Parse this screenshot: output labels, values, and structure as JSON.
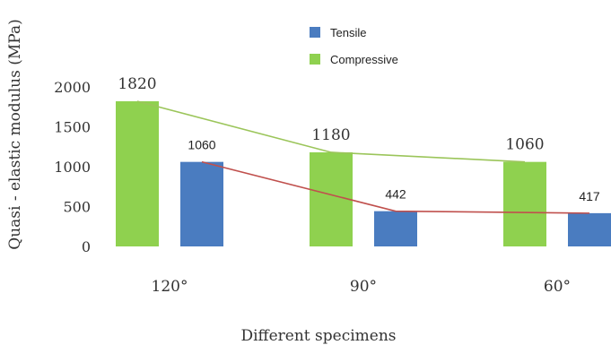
{
  "chart_data": {
    "type": "bar",
    "categories": [
      "120°",
      "90°",
      "60°"
    ],
    "series": [
      {
        "name": "Tensile",
        "values": [
          1060,
          442,
          417
        ],
        "color": "#4a7cc0",
        "trend_color": "#c0504d"
      },
      {
        "name": "Compressive",
        "values": [
          1820,
          1180,
          1060
        ],
        "color": "#8fd14f",
        "trend_color": "#9bc55a"
      }
    ],
    "data_labels": {
      "Compressive": [
        "1820",
        "1180",
        "1060"
      ],
      "Tensile": [
        "1060",
        "442",
        "417"
      ]
    },
    "trend_lines": true,
    "xlabel": "Different specimens",
    "ylabel": "Quasi - elastic modulus (MPa)",
    "ylim": [
      0,
      2000
    ],
    "yticks": [
      0,
      500,
      1000,
      1500,
      2000
    ],
    "grid": false,
    "legend_position": "top-center"
  }
}
